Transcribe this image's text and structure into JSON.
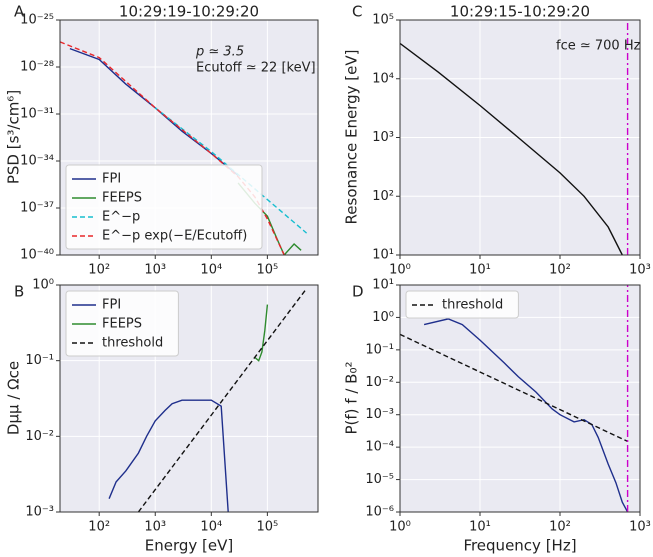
{
  "chart_data": [
    {
      "type": "line",
      "label": "A",
      "title": "10:29:19-10:29:20",
      "ylabel": "PSD [s³/cm⁶]",
      "annotations": [
        "p ≃ 3.5",
        "Ecutoff ≃ 22 [keV]"
      ],
      "xscale": "log",
      "yscale": "log",
      "grid": true,
      "legend": "lower left",
      "xlim": [
        20,
        800000
      ],
      "ylim": [
        1e-40,
        1e-25
      ],
      "xticks": [
        {
          "value": 100,
          "label": "10²"
        },
        {
          "value": 1000,
          "label": "10³"
        },
        {
          "value": 10000,
          "label": "10⁴"
        },
        {
          "value": 100000,
          "label": "10⁵"
        }
      ],
      "yticks": [
        {
          "value": 1e-25,
          "label": "10⁻²⁵"
        },
        {
          "value": 1e-28,
          "label": "10⁻²⁸"
        },
        {
          "value": 1e-31,
          "label": "10⁻³¹"
        },
        {
          "value": 1e-34,
          "label": "10⁻³⁴"
        },
        {
          "value": 1e-37,
          "label": "10⁻³⁷"
        },
        {
          "value": 1e-40,
          "label": "10⁻⁴⁰"
        }
      ],
      "series": [
        {
          "name": "FPI",
          "color": "#1f2f8c",
          "linestyle": "solid",
          "x": [
            30,
            100,
            300,
            1000,
            3000,
            10000,
            30000
          ],
          "values": [
            1.5e-27,
            3e-28,
            8e-30,
            2.5e-31,
            8e-33,
            3e-34,
            1.2e-35
          ]
        },
        {
          "name": "FEEPS",
          "color": "#2e8b2e",
          "linestyle": "solid",
          "x": [
            30000,
            60000,
            100000,
            150000,
            200000,
            300000,
            400000
          ],
          "values": [
            4e-36,
            2e-37,
            3e-38,
            1e-39,
            1e-40,
            5e-40,
            2e-40
          ]
        },
        {
          "name": "E^−p",
          "color": "#17becf",
          "linestyle": "dashed",
          "x": [
            1000,
            10000,
            500000
          ],
          "values": [
            2.5e-31,
            4e-34,
            2.5e-39
          ]
        },
        {
          "name": "E^−p exp(−E/Ecutoff)",
          "color": "#e8262a",
          "linestyle": "dashed",
          "x": [
            20,
            100,
            1000,
            10000,
            30000,
            60000,
            100000,
            200000
          ],
          "values": [
            4e-27,
            4e-28,
            2.5e-31,
            3e-34,
            1e-35,
            5e-37,
            2e-38,
            1e-40
          ]
        }
      ]
    },
    {
      "type": "line",
      "label": "B",
      "xlabel": "Energy [eV]",
      "ylabel": "Dμμ / Ωce",
      "xscale": "log",
      "yscale": "log",
      "grid": true,
      "legend": "upper left",
      "xlim": [
        20,
        800000
      ],
      "ylim": [
        0.001,
        1
      ],
      "xticks": [
        {
          "value": 100,
          "label": "10²"
        },
        {
          "value": 1000,
          "label": "10³"
        },
        {
          "value": 10000,
          "label": "10⁴"
        },
        {
          "value": 100000,
          "label": "10⁵"
        }
      ],
      "yticks": [
        {
          "value": 0.001,
          "label": "10⁻³"
        },
        {
          "value": 0.01,
          "label": "10⁻²"
        },
        {
          "value": 0.1,
          "label": "10⁻¹"
        },
        {
          "value": 1,
          "label": "10⁰"
        }
      ],
      "series": [
        {
          "name": "FPI",
          "color": "#1f2f8c",
          "linestyle": "solid",
          "x": [
            150,
            200,
            300,
            500,
            700,
            1000,
            1500,
            2000,
            3000,
            5000,
            8000,
            10000,
            15000,
            20000
          ],
          "values": [
            0.0015,
            0.0025,
            0.0035,
            0.006,
            0.01,
            0.016,
            0.022,
            0.027,
            0.03,
            0.03,
            0.03,
            0.03,
            0.025,
            0.001
          ]
        },
        {
          "name": "FEEPS",
          "color": "#2e8b2e",
          "linestyle": "solid",
          "x": [
            60000,
            70000,
            80000,
            90000,
            100000
          ],
          "values": [
            0.11,
            0.1,
            0.13,
            0.25,
            0.55
          ]
        },
        {
          "name": "threshold",
          "color": "#111111",
          "linestyle": "dashed",
          "x": [
            500,
            500000
          ],
          "values": [
            0.001,
            0.9
          ]
        }
      ]
    },
    {
      "type": "line",
      "label": "C",
      "title": "10:29:15-10:29:20",
      "ylabel": "Resonance Energy [eV]",
      "annotations": [
        "fce ≃ 700 Hz"
      ],
      "xscale": "log",
      "yscale": "log",
      "grid": true,
      "xlim": [
        1,
        1000
      ],
      "ylim": [
        10,
        100000
      ],
      "xticks": [
        {
          "value": 1,
          "label": "10⁰"
        },
        {
          "value": 10,
          "label": "10¹"
        },
        {
          "value": 100,
          "label": "10²"
        },
        {
          "value": 1000,
          "label": "10³"
        }
      ],
      "yticks": [
        {
          "value": 10,
          "label": "10¹"
        },
        {
          "value": 100,
          "label": "10²"
        },
        {
          "value": 1000,
          "label": "10³"
        },
        {
          "value": 10000,
          "label": "10⁴"
        },
        {
          "value": 100000,
          "label": "10⁵"
        }
      ],
      "series": [
        {
          "color": "#111111",
          "linestyle": "solid",
          "x": [
            1,
            3,
            10,
            30,
            100,
            200,
            400,
            600
          ],
          "values": [
            40000,
            13000,
            3500,
            1000,
            250,
            100,
            30,
            10
          ]
        },
        {
          "color": "#cc00cc",
          "linestyle": "dashdot",
          "x": [
            700,
            700
          ],
          "values": [
            10,
            100000
          ]
        }
      ]
    },
    {
      "type": "line",
      "label": "D",
      "xlabel": "Frequency [Hz]",
      "ylabel": "P(f) f / B₀²",
      "xscale": "log",
      "yscale": "log",
      "grid": true,
      "legend": "upper left",
      "xlim": [
        1,
        1000
      ],
      "ylim": [
        1e-06,
        10
      ],
      "xticks": [
        {
          "value": 1,
          "label": "10⁰"
        },
        {
          "value": 10,
          "label": "10¹"
        },
        {
          "value": 100,
          "label": "10²"
        },
        {
          "value": 1000,
          "label": "10³"
        }
      ],
      "yticks": [
        {
          "value": 1e-06,
          "label": "10⁻⁶"
        },
        {
          "value": 1e-05,
          "label": "10⁻⁵"
        },
        {
          "value": 0.0001,
          "label": "10⁻⁴"
        },
        {
          "value": 0.001,
          "label": "10⁻³"
        },
        {
          "value": 0.01,
          "label": "10⁻²"
        },
        {
          "value": 0.1,
          "label": "10⁻¹"
        },
        {
          "value": 1,
          "label": "10⁰"
        },
        {
          "value": 10,
          "label": "10¹"
        }
      ],
      "series": [
        {
          "color": "#1f2f8c",
          "linestyle": "solid",
          "x": [
            2,
            4,
            6,
            10,
            20,
            30,
            50,
            80,
            100,
            150,
            200,
            250,
            300,
            400,
            500,
            600,
            700
          ],
          "values": [
            0.6,
            0.9,
            0.6,
            0.2,
            0.04,
            0.015,
            0.005,
            0.0015,
            0.001,
            0.0006,
            0.0007,
            0.0005,
            0.0002,
            3e-05,
            8e-06,
            2e-06,
            1e-06
          ]
        },
        {
          "name": "threshold",
          "color": "#111111",
          "linestyle": "dashed",
          "x": [
            1,
            700
          ],
          "values": [
            0.3,
            0.00015
          ]
        },
        {
          "color": "#cc00cc",
          "linestyle": "dashdot",
          "x": [
            700,
            700
          ],
          "values": [
            1e-06,
            10
          ]
        }
      ]
    }
  ]
}
